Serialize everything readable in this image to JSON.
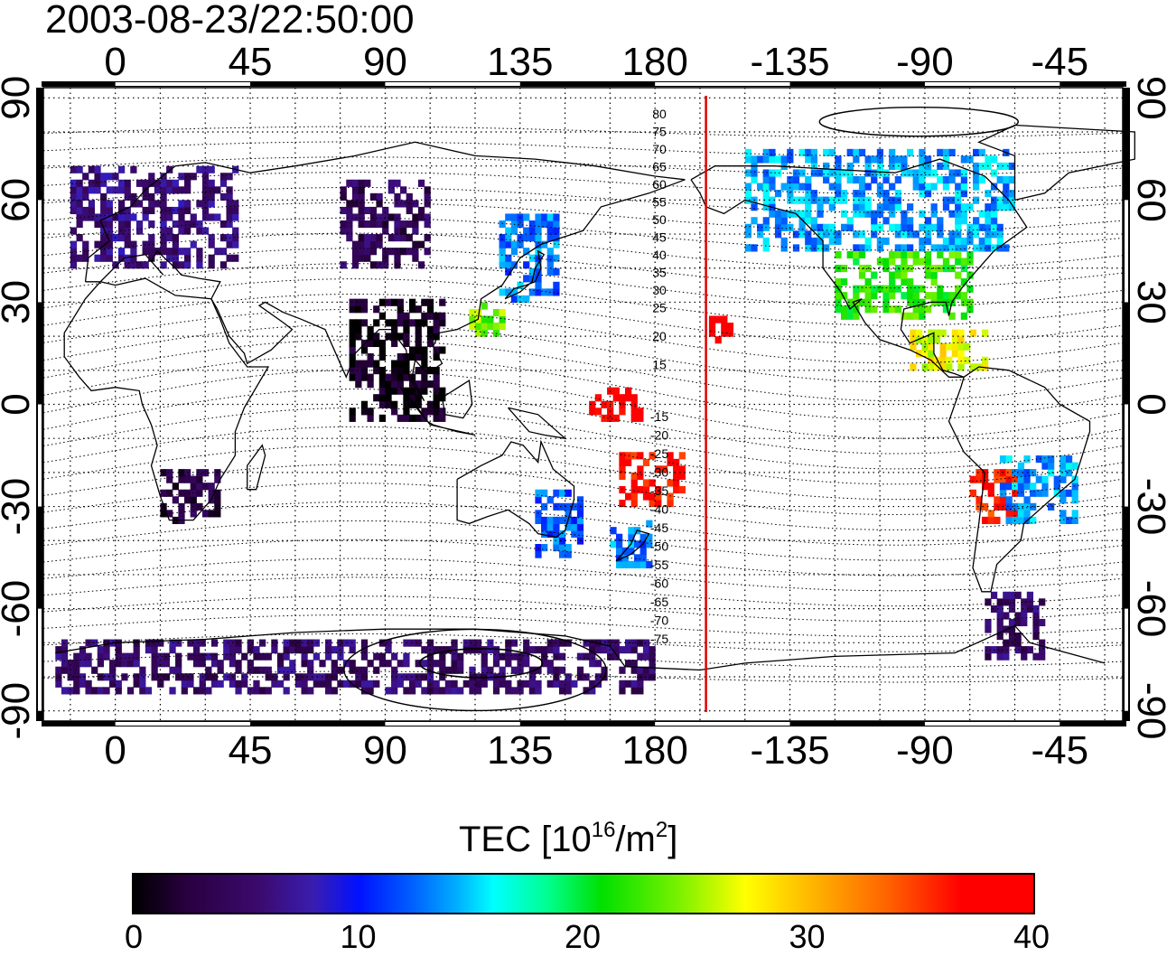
{
  "timestamp": "2003-08-23/22:50:00",
  "map": {
    "lon_labels": [
      "0",
      "45",
      "90",
      "135",
      "180",
      "-135",
      "-90",
      "-45"
    ],
    "lat_labels": [
      "90",
      "60",
      "30",
      "0",
      "-30",
      "-60",
      "-90"
    ],
    "lon_ticks": [
      0,
      45,
      90,
      135,
      180,
      225,
      270,
      315
    ],
    "lat_ticks": [
      90,
      60,
      30,
      0,
      -30,
      -60,
      -90
    ],
    "lon_range": [
      -24,
      336
    ],
    "lat_range": [
      -93,
      93
    ],
    "terminator_longitude": 197,
    "mlat_labels_north": [
      "80",
      "75",
      "70",
      "65",
      "60",
      "55",
      "50",
      "45",
      "40",
      "35",
      "30",
      "25",
      "20",
      "15"
    ],
    "mlat_labels_south": [
      "-15",
      "-20",
      "-25",
      "-30",
      "-35",
      "-40",
      "-45",
      "-50",
      "-55",
      "-60",
      "-65",
      "-70",
      "-75"
    ],
    "terminator_color": "#e00000"
  },
  "colorbar": {
    "title_main": "TEC  [10",
    "title_exp": "16",
    "title_unit": "/m",
    "title_exp2": "2",
    "title_end": "]",
    "tick_labels": [
      "0",
      "10",
      "20",
      "30",
      "40"
    ],
    "range": [
      0,
      40
    ]
  },
  "tec_regions": [
    {
      "name": "europe",
      "lon": [
        -15,
        40
      ],
      "lat": [
        40,
        70
      ],
      "tec": 6
    },
    {
      "name": "siberia",
      "lon": [
        75,
        105
      ],
      "lat": [
        40,
        65
      ],
      "tec": 4
    },
    {
      "name": "south-asia",
      "lon": [
        78,
        110
      ],
      "lat": [
        -5,
        30
      ],
      "tec": 1
    },
    {
      "name": "africa-south",
      "lon": [
        15,
        35
      ],
      "lat": [
        -35,
        -20
      ],
      "tec": 3
    },
    {
      "name": "japan-east",
      "lon": [
        128,
        148
      ],
      "lat": [
        30,
        55
      ],
      "tec": 13
    },
    {
      "name": "china-east",
      "lon": [
        118,
        130
      ],
      "lat": [
        20,
        30
      ],
      "tec": 24
    },
    {
      "name": "pacific-tropics",
      "lon": [
        158,
        175
      ],
      "lat": [
        -5,
        5
      ],
      "tec": 38
    },
    {
      "name": "pacific-south",
      "lon": [
        168,
        190
      ],
      "lat": [
        -30,
        -15
      ],
      "tec": 37
    },
    {
      "name": "hawaii",
      "lon": [
        198,
        206
      ],
      "lat": [
        18,
        25
      ],
      "tec": 39
    },
    {
      "name": "australia-east",
      "lon": [
        140,
        155
      ],
      "lat": [
        -45,
        -25
      ],
      "tec": 12
    },
    {
      "name": "new-zealand",
      "lon": [
        165,
        178
      ],
      "lat": [
        -48,
        -35
      ],
      "tec": 13
    },
    {
      "name": "north-america-north",
      "lon": [
        210,
        300
      ],
      "lat": [
        45,
        75
      ],
      "tec": 14
    },
    {
      "name": "north-america-south",
      "lon": [
        240,
        285
      ],
      "lat": [
        25,
        45
      ],
      "tec": 22
    },
    {
      "name": "central-america",
      "lon": [
        265,
        290
      ],
      "lat": [
        10,
        22
      ],
      "tec": 27
    },
    {
      "name": "south-america-west",
      "lon": [
        285,
        300
      ],
      "lat": [
        -35,
        -20
      ],
      "tec": 36
    },
    {
      "name": "south-america-east",
      "lon": [
        295,
        320
      ],
      "lat": [
        -35,
        -15
      ],
      "tec": 14
    },
    {
      "name": "patagonia",
      "lon": [
        290,
        310
      ],
      "lat": [
        -75,
        -55
      ],
      "tec": 5
    },
    {
      "name": "antarctica",
      "lon": [
        -20,
        180
      ],
      "lat": [
        -85,
        -70
      ],
      "tec": 5
    }
  ]
}
